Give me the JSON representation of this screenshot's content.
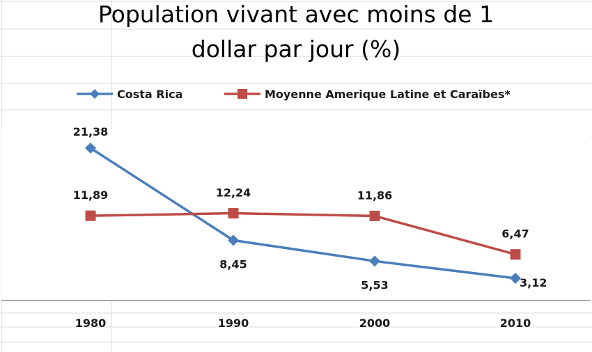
{
  "chart_data": {
    "type": "line",
    "title_lines": [
      "Population  vivant avec moins de 1",
      "dollar par jour (%)"
    ],
    "categories": [
      "1980",
      "1990",
      "2000",
      "2010"
    ],
    "series": [
      {
        "name": "Costa Rica",
        "color": "#4a7ebb",
        "marker": "diamond",
        "values": [
          21.38,
          8.45,
          5.53,
          3.12
        ],
        "labels": [
          "21,38",
          "8,45",
          "5,53",
          "3,12"
        ]
      },
      {
        "name": "Moyenne Amerique Latine et Caraïbes*",
        "color": "#be4b48",
        "marker": "square",
        "values": [
          11.89,
          12.24,
          11.86,
          6.47
        ],
        "labels": [
          "11,89",
          "12,24",
          "11,86",
          "6,47"
        ]
      }
    ],
    "ylim": [
      0,
      24
    ],
    "grid": false,
    "legend_position": "top"
  }
}
